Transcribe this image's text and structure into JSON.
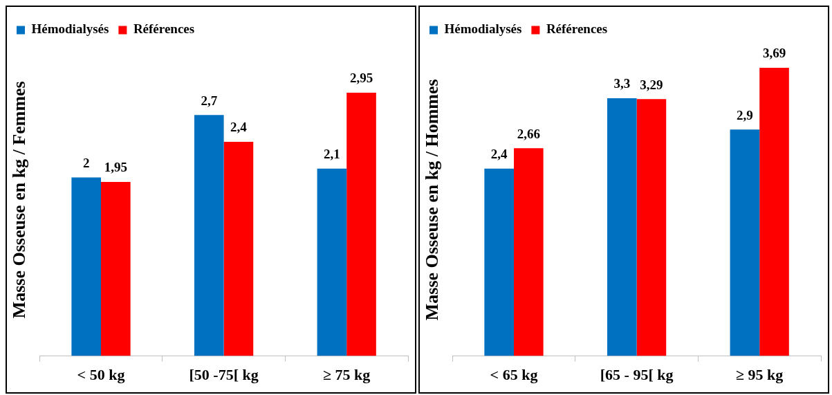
{
  "chart_data": [
    {
      "type": "bar",
      "ylabel": "Masse Osseuse en kg / Femmes",
      "categories": [
        "< 50 kg",
        "[50 -75[ kg",
        "≥ 75 kg"
      ],
      "series": [
        {
          "name": "Hémodialysés",
          "color": "#0070c0",
          "values": [
            2,
            2.7,
            2.1
          ],
          "value_labels": [
            "2",
            "2,7",
            "2,1"
          ]
        },
        {
          "name": "Références",
          "color": "#ff0000",
          "values": [
            1.95,
            2.4,
            2.95
          ],
          "value_labels": [
            "1,95",
            "2,4",
            "2,95"
          ]
        }
      ],
      "legend": "top left",
      "grid": false
    },
    {
      "type": "bar",
      "ylabel": "Masse Osseuse en kg / Hommes",
      "categories": [
        "< 65 kg",
        "[65 - 95[ kg",
        "≥ 95 kg"
      ],
      "series": [
        {
          "name": "Hémodialysés",
          "color": "#0070c0",
          "values": [
            2.4,
            3.3,
            2.9
          ],
          "value_labels": [
            "2,4",
            "3,3",
            "2,9"
          ]
        },
        {
          "name": "Références",
          "color": "#ff0000",
          "values": [
            2.66,
            3.29,
            3.69
          ],
          "value_labels": [
            "2,66",
            "3,29",
            "3,69"
          ]
        }
      ],
      "legend": "top left",
      "grid": false
    }
  ]
}
